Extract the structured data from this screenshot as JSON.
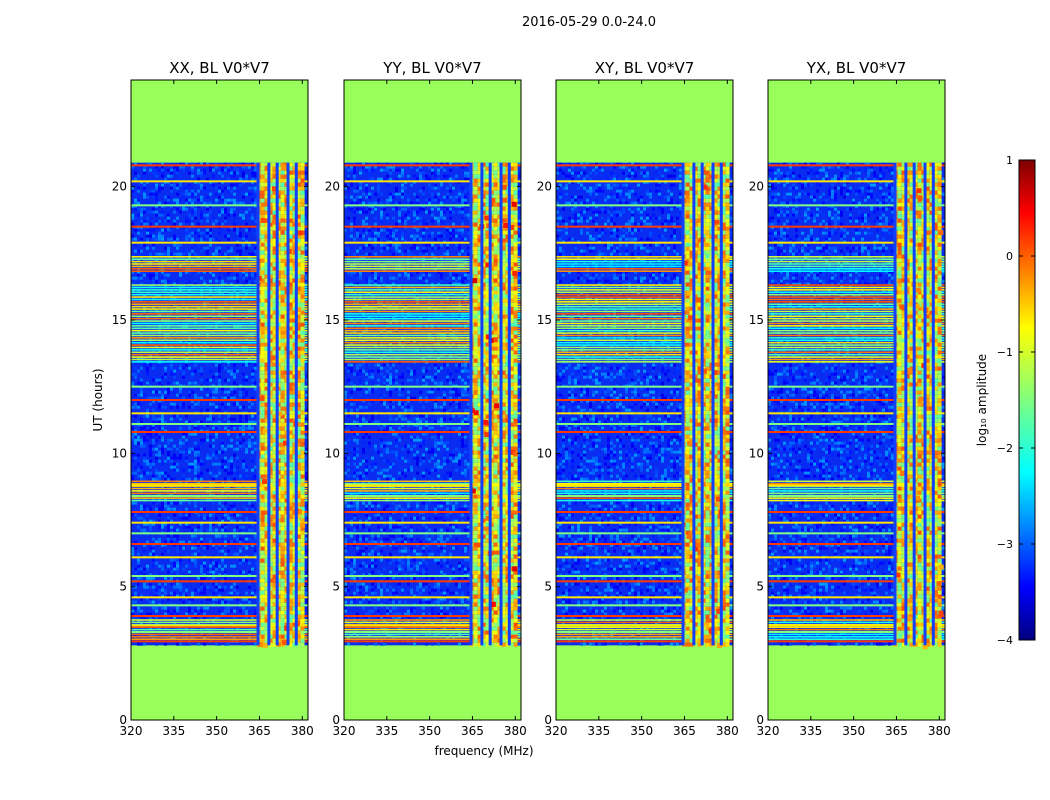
{
  "chart_data": {
    "type": "heatmap",
    "suptitle": "2016-05-29 0.0-24.0",
    "xlabel": "frequency (MHz)",
    "ylabel": "UT (hours)",
    "xlim": [
      320,
      382
    ],
    "ylim": [
      0,
      24
    ],
    "xticks": [
      320,
      335,
      350,
      365,
      380
    ],
    "yticks": [
      0,
      5,
      10,
      15,
      20
    ],
    "data_time_range": [
      2.8,
      20.9
    ],
    "rfi_band_mhz": [
      364,
      380
    ],
    "rfi_channels_mhz": [
      364.5,
      368.3,
      371.2,
      375.0,
      377.9
    ],
    "panels": [
      {
        "title": "XX, BL V0*V7",
        "label_suffix": ""
      },
      {
        "title": "YY, BL V0*V7",
        "label_suffix": ""
      },
      {
        "title": "XY, BL V0*V7",
        "label_suffix": ""
      },
      {
        "title": "YX, BL V0*V7",
        "label_suffix": ""
      }
    ],
    "colorbar": {
      "label": "log₁₀ amplitude",
      "range": [
        -4,
        1
      ],
      "ticks": [
        "1",
        "0",
        "−1",
        "−2",
        "−3",
        "−4"
      ],
      "colormap": "jet"
    },
    "masked_color": "#99ff5a",
    "bright_bands_hours": [
      [
        13.4,
        16.3
      ],
      [
        16.8,
        17.4
      ],
      [
        8.2,
        9.0
      ],
      [
        3.0,
        3.8
      ]
    ],
    "horizontal_lines_hours": [
      2.95,
      3.3,
      3.55,
      3.9,
      4.3,
      4.6,
      5.2,
      5.4,
      6.1,
      6.6,
      7.0,
      7.4,
      7.8,
      8.4,
      8.8,
      10.8,
      11.1,
      11.5,
      12.0,
      12.5,
      17.9,
      18.5,
      19.3,
      20.2,
      20.8
    ]
  }
}
